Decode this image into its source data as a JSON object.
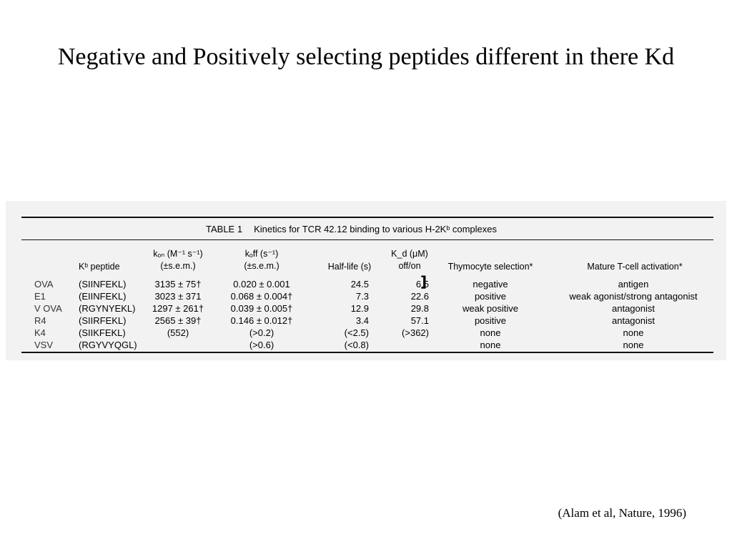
{
  "slide": {
    "title": "Negative and Positively selecting peptides different in there Kd",
    "credit": "(Alam et al, Nature, 1996)"
  },
  "table": {
    "label": "TABLE 1",
    "caption": "Kinetics for TCR 42.12 binding to various H-2Kᵇ complexes",
    "headers": {
      "peptide": "Kᵇ peptide",
      "kon_line1": "kₒₙ (M⁻¹ s⁻¹)",
      "kon_line2": "(±s.e.m.)",
      "koff_line1": "kₒff (s⁻¹)",
      "koff_line2": "(±s.e.m.)",
      "half_life": "Half-life (s)",
      "kd_line1": "K_d (μM)",
      "kd_line2": "off/on",
      "thymocyte": "Thymocyte selection*",
      "mature": "Mature T-cell activation*"
    },
    "rows": [
      {
        "name": "OVA",
        "peptide": "(SIINFEKL)",
        "kon": "3135 ± 75†",
        "koff": "0.020 ± 0.001",
        "half_life": "24.5",
        "kd": "6.5",
        "thymocyte": "negative",
        "mature": "antigen"
      },
      {
        "name": "E1",
        "peptide": "(EIINFEKL)",
        "kon": "3023 ± 371",
        "koff": "0.068 ± 0.004†",
        "half_life": "7.3",
        "kd": "22.6",
        "thymocyte": "positive",
        "mature": "weak agonist/strong antagonist"
      },
      {
        "name": "V OVA",
        "peptide": "(RGYNYEKL)",
        "kon": "1297 ± 261†",
        "koff": "0.039 ± 0.005†",
        "half_life": "12.9",
        "kd": "29.8",
        "thymocyte": "weak positive",
        "mature": "antagonist"
      },
      {
        "name": "R4",
        "peptide": "(SIIRFEKL)",
        "kon": "2565 ± 39†",
        "koff": "0.146 ± 0.012†",
        "half_life": "3.4",
        "kd": "57.1",
        "thymocyte": "positive",
        "mature": "antagonist"
      },
      {
        "name": "K4",
        "peptide": "(SIIKFEKL)",
        "kon": "(552)",
        "koff": "(>0.2)",
        "half_life": "(<2.5)",
        "kd": "(>362)",
        "thymocyte": "none",
        "mature": "none"
      },
      {
        "name": "VSV",
        "peptide": "(RGYVYQGL)",
        "kon": "",
        "koff": "(>0.6)",
        "half_life": "(<0.8)",
        "kd": "",
        "thymocyte": "none",
        "mature": "none"
      }
    ]
  }
}
